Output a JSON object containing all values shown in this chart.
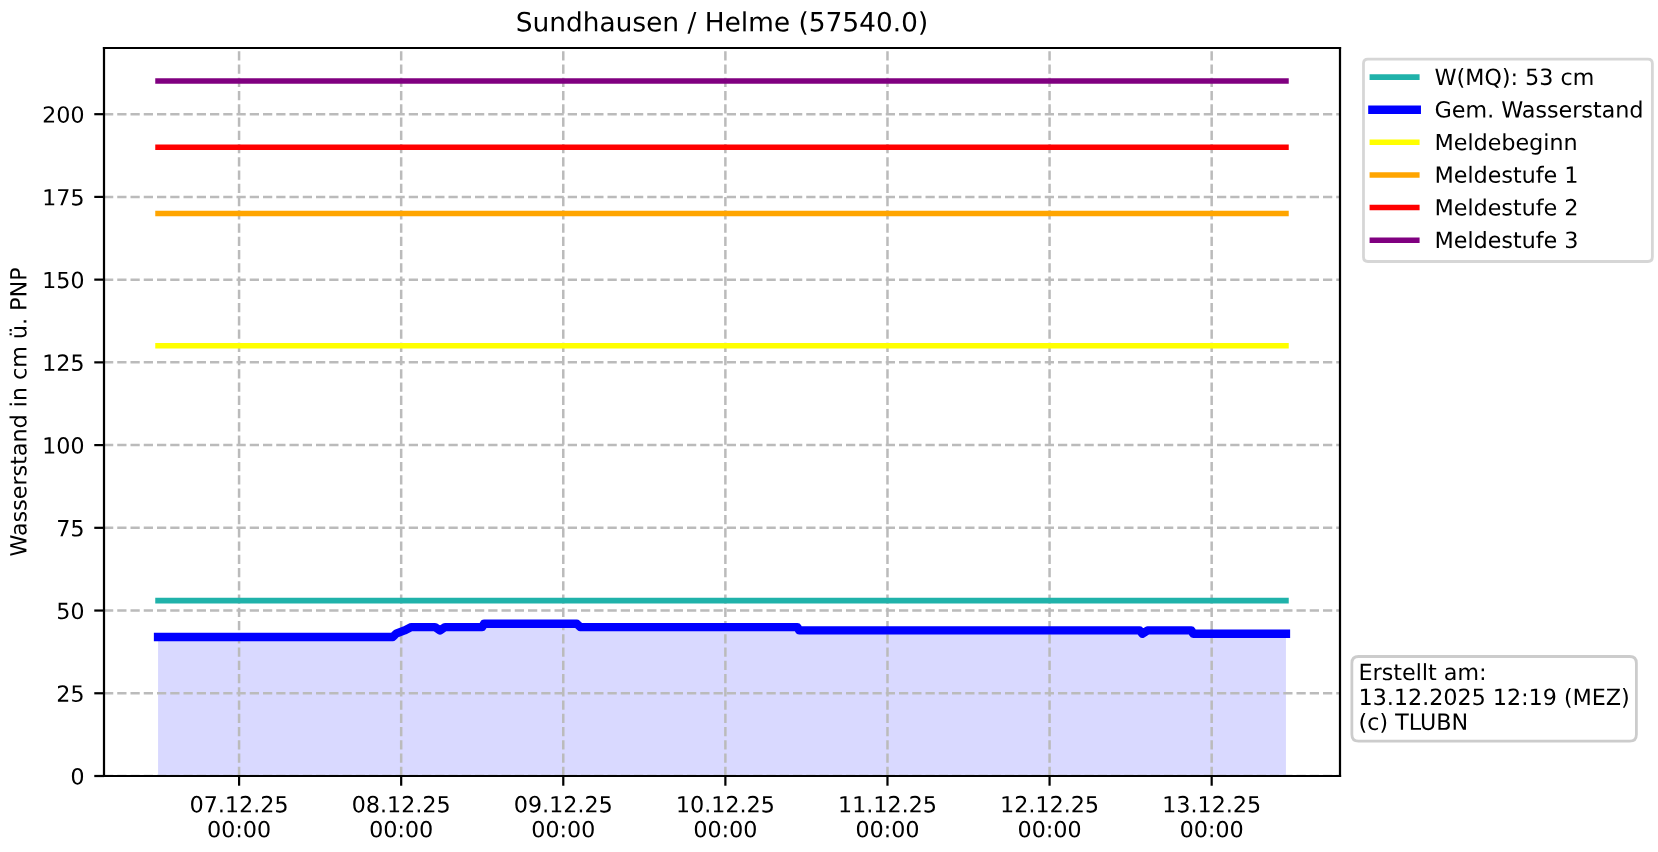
{
  "chart_data": {
    "type": "line",
    "title": "Sundhausen / Helme (57540.0)",
    "ylabel": "Wasserstand in cm ü. PNP",
    "xlim": [
      "2025-12-06T04:00",
      "2025-12-13T19:00"
    ],
    "ylim": [
      0,
      220
    ],
    "xticks": [
      {
        "value": "2025-12-07T00:00",
        "label": "07.12.25\n00:00"
      },
      {
        "value": "2025-12-08T00:00",
        "label": "08.12.25\n00:00"
      },
      {
        "value": "2025-12-09T00:00",
        "label": "09.12.25\n00:00"
      },
      {
        "value": "2025-12-10T00:00",
        "label": "10.12.25\n00:00"
      },
      {
        "value": "2025-12-11T00:00",
        "label": "11.12.25\n00:00"
      },
      {
        "value": "2025-12-12T00:00",
        "label": "12.12.25\n00:00"
      },
      {
        "value": "2025-12-13T00:00",
        "label": "13.12.25\n00:00"
      }
    ],
    "yticks": [
      0,
      25,
      50,
      75,
      100,
      125,
      150,
      175,
      200
    ],
    "grid": true,
    "line_style": "solid",
    "legend": "top right",
    "annotations": [
      "Erstellt am:\n13.12.2025 12:19 (MEZ)\n(c) TLUBN"
    ],
    "series": [
      {
        "name": "W(MQ): 53 cm",
        "color": "#20b2aa",
        "x": [
          "2025-12-06T12:00",
          "2025-12-13T11:00"
        ],
        "values": [
          53,
          53
        ]
      },
      {
        "name": "Gem. Wasserstand",
        "type": "area",
        "color": "#0000ff",
        "x": [
          "2025-12-06T12:00",
          "2025-12-07T22:45",
          "2025-12-07T23:15",
          "2025-12-08T00:30",
          "2025-12-08T01:30",
          "2025-12-08T05:00",
          "2025-12-08T05:45",
          "2025-12-08T06:30",
          "2025-12-08T12:00",
          "2025-12-08T12:15",
          "2025-12-09T02:00",
          "2025-12-09T02:30",
          "2025-12-10T10:40",
          "2025-12-10T10:55",
          "2025-12-12T13:20",
          "2025-12-12T13:45",
          "2025-12-12T14:30",
          "2025-12-12T21:00",
          "2025-12-12T21:15",
          "2025-12-13T11:00"
        ],
        "values": [
          42,
          42,
          43,
          44,
          45,
          45,
          44,
          45,
          45,
          46,
          46,
          45,
          45,
          44,
          44,
          43,
          44,
          44,
          43,
          43
        ]
      },
      {
        "name": "Meldebeginn",
        "color": "#ffff00",
        "x": [
          "2025-12-06T12:00",
          "2025-12-13T11:00"
        ],
        "values": [
          130,
          130
        ]
      },
      {
        "name": "Meldestufe 1",
        "color": "#ffa500",
        "x": [
          "2025-12-06T12:00",
          "2025-12-13T11:00"
        ],
        "values": [
          170,
          170
        ]
      },
      {
        "name": "Meldestufe 2",
        "color": "#ff0000",
        "x": [
          "2025-12-06T12:00",
          "2025-12-13T11:00"
        ],
        "values": [
          190,
          190
        ]
      },
      {
        "name": "Meldestufe 3",
        "color": "#800080",
        "x": [
          "2025-12-06T12:00",
          "2025-12-13T11:00"
        ],
        "values": [
          210,
          210
        ]
      }
    ]
  }
}
